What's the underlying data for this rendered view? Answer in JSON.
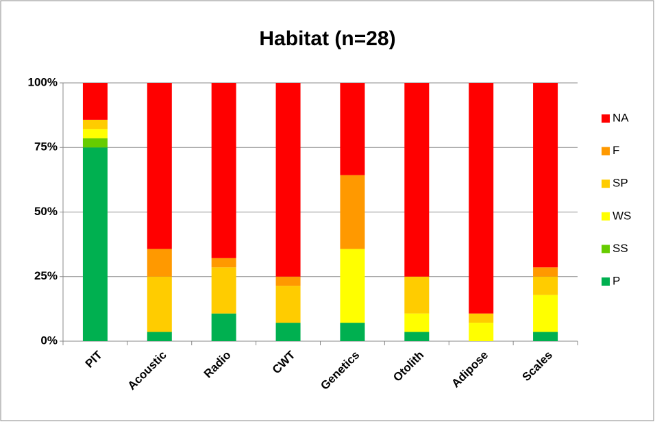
{
  "chart_data": {
    "type": "stacked_bar",
    "title": "Habitat (n=28)",
    "categories": [
      "PIT",
      "Acoustic",
      "Radio",
      "CWT",
      "Genetics",
      "Otolith",
      "Adipose",
      "Scales"
    ],
    "series": [
      {
        "name": "P",
        "color": "#00b050",
        "values": [
          75,
          3.57,
          10.71,
          7.14,
          7.14,
          3.57,
          0,
          3.57
        ]
      },
      {
        "name": "SS",
        "color": "#66cc00",
        "values": [
          3.57,
          0,
          0,
          0,
          0,
          0,
          0,
          0
        ]
      },
      {
        "name": "WS",
        "color": "#ffff00",
        "values": [
          3.57,
          0,
          0,
          0,
          28.57,
          7.14,
          7.14,
          14.29
        ]
      },
      {
        "name": "SP",
        "color": "#ffcc00",
        "values": [
          3.57,
          21.43,
          17.86,
          14.29,
          0,
          14.29,
          3.57,
          7.14
        ]
      },
      {
        "name": "F",
        "color": "#ff9900",
        "values": [
          0,
          10.71,
          3.57,
          3.57,
          28.57,
          0,
          0,
          3.57
        ]
      },
      {
        "name": "NA",
        "color": "#ff0000",
        "values": [
          14.29,
          64.29,
          67.86,
          75,
          35.71,
          75,
          89.29,
          71.43
        ]
      }
    ],
    "ylim": [
      0,
      100
    ],
    "yticks": [
      {
        "value": 0,
        "label": "0%"
      },
      {
        "value": 25,
        "label": "25%"
      },
      {
        "value": 50,
        "label": "50%"
      },
      {
        "value": 75,
        "label": "75%"
      },
      {
        "value": 100,
        "label": "100%"
      }
    ],
    "grid": true,
    "legend": "right"
  }
}
